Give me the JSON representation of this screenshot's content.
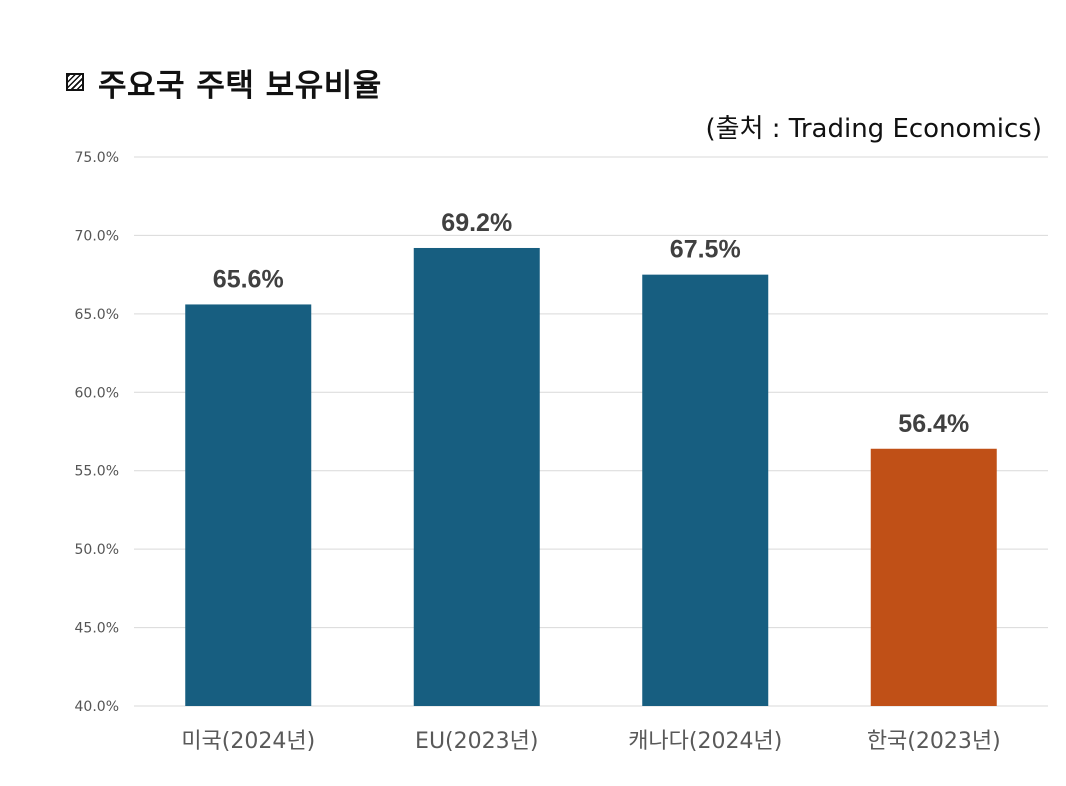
{
  "chart_data": {
    "type": "bar",
    "title": "주요국 주택 보유비율",
    "source": "(출처 : Trading Economics)",
    "categories": [
      "미국(2024년)",
      "EU(2023년)",
      "캐나다(2024년)",
      "한국(2023년)"
    ],
    "values": [
      65.6,
      69.2,
      67.5,
      56.4
    ],
    "data_labels": [
      "65.6%",
      "69.2%",
      "67.5%",
      "56.4%"
    ],
    "ylim": [
      40,
      75
    ],
    "yticks": [
      40,
      45,
      50,
      55,
      60,
      65,
      70,
      75
    ],
    "ytick_labels": [
      "40.0%",
      "45.0%",
      "50.0%",
      "55.0%",
      "60.0%",
      "65.0%",
      "70.0%",
      "75.0%"
    ],
    "grid": true,
    "colors": {
      "default_bar": "#175e80",
      "highlight_bar": "#c05017",
      "gridline": "#d9d9d9"
    },
    "highlight_index": 3
  }
}
